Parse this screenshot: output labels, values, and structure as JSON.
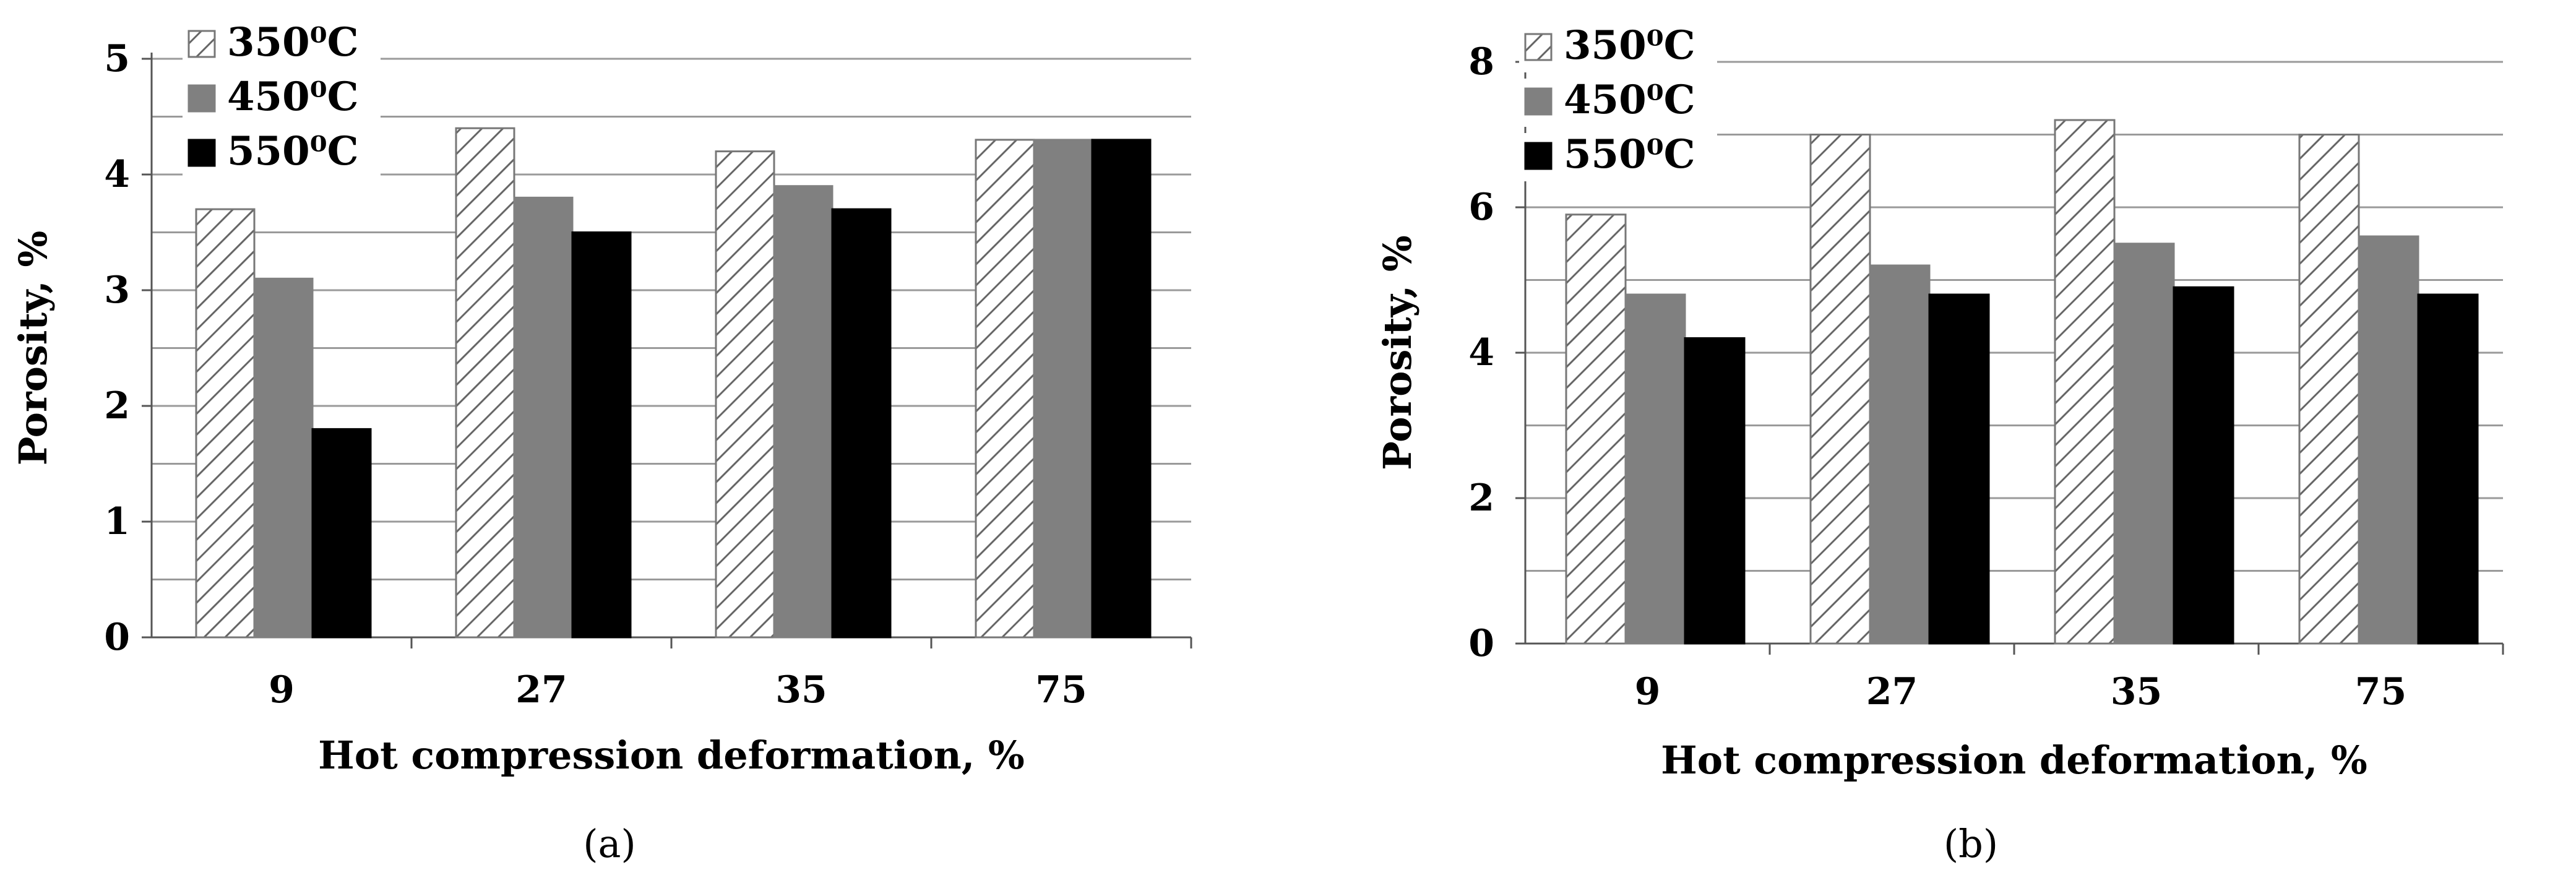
{
  "figure": {
    "caption_a": "(a)",
    "caption_b": "(b)"
  },
  "chart_data": [
    {
      "type": "bar",
      "panel": "(a)",
      "categories": [
        "9",
        "27",
        "35",
        "75"
      ],
      "series": [
        {
          "name": "350⁰C",
          "values": [
            3.7,
            4.4,
            4.2,
            4.3
          ],
          "pattern": "hatch",
          "color": "#ffffff"
        },
        {
          "name": "450⁰C",
          "values": [
            3.1,
            3.8,
            3.9,
            4.3
          ],
          "pattern": "solid",
          "color": "#808080"
        },
        {
          "name": "550⁰C",
          "values": [
            1.8,
            3.5,
            3.7,
            4.3
          ],
          "pattern": "solid",
          "color": "#000000"
        }
      ],
      "xlabel": "Hot compression deformation, %",
      "ylabel": "Porosity, %",
      "ylim": [
        0,
        5
      ],
      "yticks": [
        0,
        1,
        2,
        3,
        4,
        5
      ],
      "minor_gridlines_step": 0.5,
      "grid": true,
      "legend_position": "top-left"
    },
    {
      "type": "bar",
      "panel": "(b)",
      "categories": [
        "9",
        "27",
        "35",
        "75"
      ],
      "series": [
        {
          "name": "350⁰C",
          "values": [
            5.9,
            7.0,
            7.2,
            7.0
          ],
          "pattern": "hatch",
          "color": "#ffffff"
        },
        {
          "name": "450⁰C",
          "values": [
            4.8,
            5.2,
            5.5,
            5.6
          ],
          "pattern": "solid",
          "color": "#808080"
        },
        {
          "name": "550⁰C",
          "values": [
            4.2,
            4.8,
            4.9,
            4.8
          ],
          "pattern": "solid",
          "color": "#000000"
        }
      ],
      "xlabel": "Hot compression deformation, %",
      "ylabel": "Porosity, %",
      "ylim": [
        0,
        8
      ],
      "yticks": [
        0,
        2,
        4,
        6,
        8
      ],
      "minor_gridlines_step": 1,
      "grid": true,
      "legend_position": "top-left"
    }
  ]
}
